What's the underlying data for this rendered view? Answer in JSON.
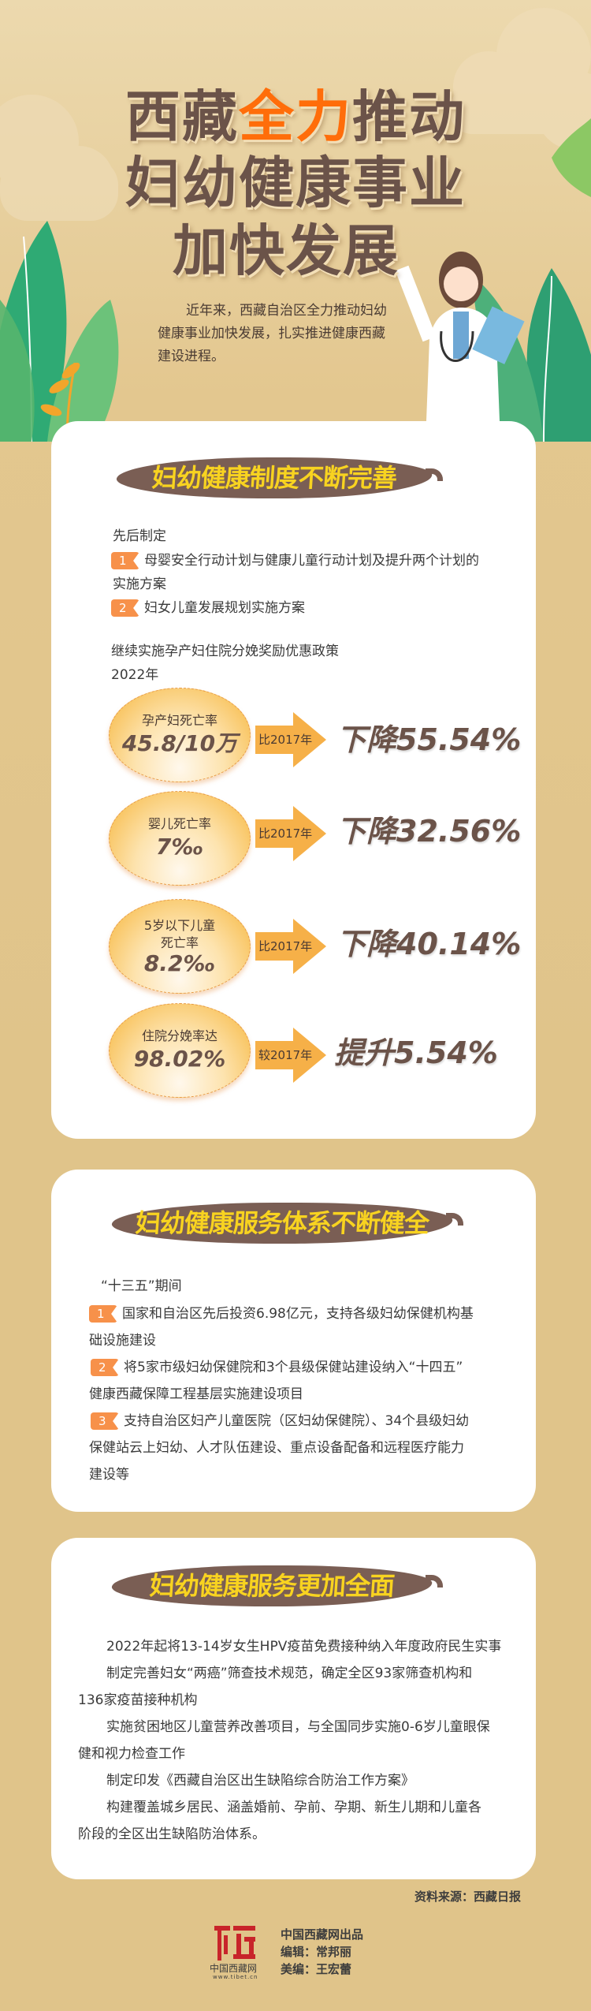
{
  "header": {
    "title_line1_a": "西藏",
    "title_line1_highlight": "全力",
    "title_line1_b": "推动",
    "title_line2": "妇幼健康事业",
    "title_line3": "加快发展",
    "intro": "近年来，西藏自治区全力推动妇幼健康事业加快发展，扎实推进健康西藏建设进程。"
  },
  "section1": {
    "banner": "妇幼健康制度不断完善",
    "lead": "先后制定",
    "items": [
      {
        "num": "1",
        "line1": "母婴安全行动计划与健康儿童行动计划及提升两个计划的",
        "line2": "实施方案"
      },
      {
        "num": "2",
        "line1": "妇女儿童发展规划实施方案"
      }
    ],
    "policy": "继续实施孕产妇住院分娩奖励优惠政策",
    "year": "2022年",
    "stats": [
      {
        "label": "孕产妇死亡率",
        "value": "45.8/10万",
        "compare": "比2017年",
        "result": "下降55.54%"
      },
      {
        "label": "婴儿死亡率",
        "value": "7‰",
        "compare": "比2017年",
        "result": "下降32.56%"
      },
      {
        "label": "5岁以下儿童",
        "label2": "死亡率",
        "value": "8.2‰",
        "compare": "比2017年",
        "result": "下降40.14%"
      },
      {
        "label": "住院分娩率达",
        "value": "98.02%",
        "compare": "较2017年",
        "result": "提升5.54%"
      }
    ]
  },
  "section2": {
    "banner": "妇幼健康服务体系不断健全",
    "lead": "“十三五”期间",
    "items": [
      {
        "num": "1",
        "line1": "国家和自治区先后投资6.98亿元，支持各级妇幼保健机构基",
        "line2": "础设施建设"
      },
      {
        "num": "2",
        "line1": "将5家市级妇幼保健院和3个县级保健站建设纳入“十四五”",
        "line2": "健康西藏保障工程基层实施建设项目"
      },
      {
        "num": "3",
        "line1": "支持自治区妇产儿童医院（区妇幼保健院）、34个县级妇幼",
        "line2": "保健站云上妇幼、人才队伍建设、重点设备配备和远程医疗能力",
        "line3": "建设等"
      }
    ]
  },
  "section3": {
    "banner": "妇幼健康服务更加全面",
    "paragraphs": [
      {
        "line1": "2022年起将13-14岁女生HPV疫苗免费接种纳入年度政府民生实事"
      },
      {
        "line1": "制定完善妇女“两癌”筛查技术规范，确定全区93家筛查机构和",
        "line2": "136家疫苗接种机构"
      },
      {
        "line1": "实施贫困地区儿童营养改善项目，与全国同步实施0-6岁儿童眼保",
        "line2": "健和视力检查工作"
      },
      {
        "line1": "制定印发《西藏自治区出生缺陷综合防治工作方案》"
      },
      {
        "line1": "构建覆盖城乡居民、涵盖婚前、孕前、孕期、新生儿期和儿童各",
        "line2": "阶段的全区出生缺陷防治体系。"
      }
    ]
  },
  "footer": {
    "source": "资料来源：西藏日报",
    "logo_name": "中国西藏网",
    "logo_url": "www.tibet.cn",
    "producer": "中国西藏网出品",
    "editor": "编辑：常邦丽",
    "designer": "美编：王宏蕾"
  },
  "colors": {
    "title": "#6b5349",
    "highlight": "#ff6d0a",
    "banner": "#7a5e54",
    "banner_text": "#f8d320",
    "badge": "#f7914a",
    "background": "#e0c48a"
  }
}
